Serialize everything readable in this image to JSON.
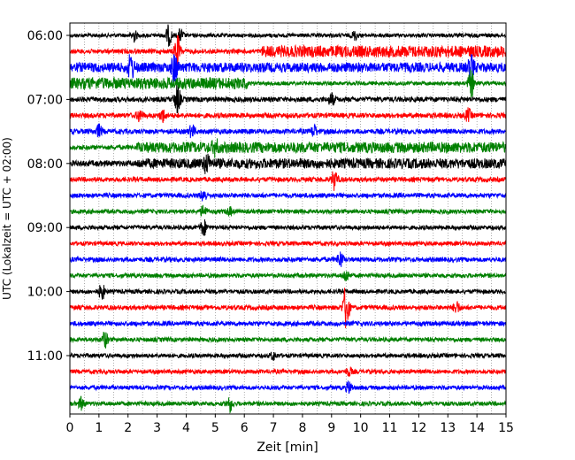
{
  "chart_data": {
    "type": "line",
    "chart_kind": "seismic helicorder",
    "title": "",
    "xlabel": "Zeit  [min]",
    "ylabel": "UTC (Lokalzeit = UTC + 02:00)",
    "xlim": [
      0,
      15
    ],
    "x_ticks": [
      "0",
      "1",
      "2",
      "3",
      "4",
      "5",
      "6",
      "7",
      "8",
      "9",
      "10",
      "11",
      "12",
      "13",
      "14",
      "15"
    ],
    "y_ticks": [
      "06:00",
      "07:00",
      "08:00",
      "09:00",
      "10:00",
      "11:00"
    ],
    "vertical_grid": "dotted, every 0.5 min",
    "legend": "none",
    "trace_colors": [
      "#000000",
      "#ff0000",
      "#0000ff",
      "#008000"
    ],
    "trace_start": "06:00",
    "trace_end": "11:45",
    "trace_interval_min": 15,
    "traces": [
      {
        "start": "06:00",
        "color": "#000000",
        "base_amp": 1.0,
        "events": [
          {
            "t": 2.2,
            "amp": 3
          },
          {
            "t": 3.4,
            "amp": 5
          },
          {
            "t": 3.8,
            "amp": 3
          },
          {
            "t": 9.8,
            "amp": 2
          }
        ]
      },
      {
        "start": "06:15",
        "color": "#ff0000",
        "base_amp": 1.2,
        "events": [
          {
            "t": 3.7,
            "amp": 8
          }
        ],
        "elevated": [
          6.6,
          15,
          3.0
        ]
      },
      {
        "start": "06:30",
        "color": "#0000ff",
        "base_amp": 2.5,
        "events": [
          {
            "t": 2.1,
            "amp": 6
          },
          {
            "t": 3.6,
            "amp": 7
          },
          {
            "t": 13.8,
            "amp": 5
          }
        ]
      },
      {
        "start": "06:45",
        "color": "#008000",
        "base_amp": 1.0,
        "events": [
          {
            "t": 13.8,
            "amp": 7
          }
        ],
        "elevated": [
          0,
          6.1,
          3.0
        ]
      },
      {
        "start": "07:00",
        "color": "#000000",
        "base_amp": 1.3,
        "events": [
          {
            "t": 3.7,
            "amp": 7
          },
          {
            "t": 9.0,
            "amp": 3
          }
        ]
      },
      {
        "start": "07:15",
        "color": "#ff0000",
        "base_amp": 1.3,
        "events": [
          {
            "t": 2.4,
            "amp": 3
          },
          {
            "t": 3.2,
            "amp": 3
          },
          {
            "t": 13.7,
            "amp": 3
          }
        ]
      },
      {
        "start": "07:30",
        "color": "#0000ff",
        "base_amp": 1.3,
        "events": [
          {
            "t": 1.0,
            "amp": 3
          },
          {
            "t": 4.2,
            "amp": 3
          },
          {
            "t": 8.4,
            "amp": 3
          }
        ]
      },
      {
        "start": "07:45",
        "color": "#008000",
        "base_amp": 1.2,
        "events": [
          {
            "t": 5.0,
            "amp": 3
          }
        ],
        "elevated": [
          2.3,
          15,
          2.8
        ]
      },
      {
        "start": "08:00",
        "color": "#000000",
        "base_amp": 1.5,
        "events": [
          {
            "t": 4.7,
            "amp": 4
          }
        ],
        "elevated": [
          2.3,
          15,
          2.6
        ]
      },
      {
        "start": "08:15",
        "color": "#ff0000",
        "base_amp": 1.2,
        "events": [
          {
            "t": 9.1,
            "amp": 5
          }
        ]
      },
      {
        "start": "08:30",
        "color": "#0000ff",
        "base_amp": 1.2,
        "events": [
          {
            "t": 4.6,
            "amp": 3
          }
        ]
      },
      {
        "start": "08:45",
        "color": "#008000",
        "base_amp": 1.1,
        "events": [
          {
            "t": 4.6,
            "amp": 3
          },
          {
            "t": 5.5,
            "amp": 2
          }
        ]
      },
      {
        "start": "09:00",
        "color": "#000000",
        "base_amp": 1.1,
        "events": [
          {
            "t": 4.6,
            "amp": 4
          }
        ]
      },
      {
        "start": "09:15",
        "color": "#ff0000",
        "base_amp": 1.1,
        "events": []
      },
      {
        "start": "09:30",
        "color": "#0000ff",
        "base_amp": 1.2,
        "events": [
          {
            "t": 9.3,
            "amp": 4
          }
        ]
      },
      {
        "start": "09:45",
        "color": "#008000",
        "base_amp": 1.1,
        "events": [
          {
            "t": 9.5,
            "amp": 3
          }
        ]
      },
      {
        "start": "10:00",
        "color": "#000000",
        "base_amp": 1.1,
        "events": [
          {
            "t": 1.1,
            "amp": 4
          }
        ]
      },
      {
        "start": "10:15",
        "color": "#ff0000",
        "base_amp": 1.2,
        "events": [
          {
            "t": 9.5,
            "amp": 12
          },
          {
            "t": 13.3,
            "amp": 3
          }
        ]
      },
      {
        "start": "10:30",
        "color": "#0000ff",
        "base_amp": 1.2,
        "events": []
      },
      {
        "start": "10:45",
        "color": "#008000",
        "base_amp": 1.1,
        "events": [
          {
            "t": 1.2,
            "amp": 4
          }
        ]
      },
      {
        "start": "11:00",
        "color": "#000000",
        "base_amp": 1.1,
        "events": [
          {
            "t": 7.0,
            "amp": 2
          }
        ]
      },
      {
        "start": "11:15",
        "color": "#ff0000",
        "base_amp": 1.1,
        "events": [
          {
            "t": 9.6,
            "amp": 2
          }
        ]
      },
      {
        "start": "11:30",
        "color": "#0000ff",
        "base_amp": 1.1,
        "events": [
          {
            "t": 9.6,
            "amp": 3
          }
        ]
      },
      {
        "start": "11:45",
        "color": "#008000",
        "base_amp": 1.1,
        "events": [
          {
            "t": 5.5,
            "amp": 4
          },
          {
            "t": 0.4,
            "amp": 3
          }
        ]
      }
    ]
  }
}
